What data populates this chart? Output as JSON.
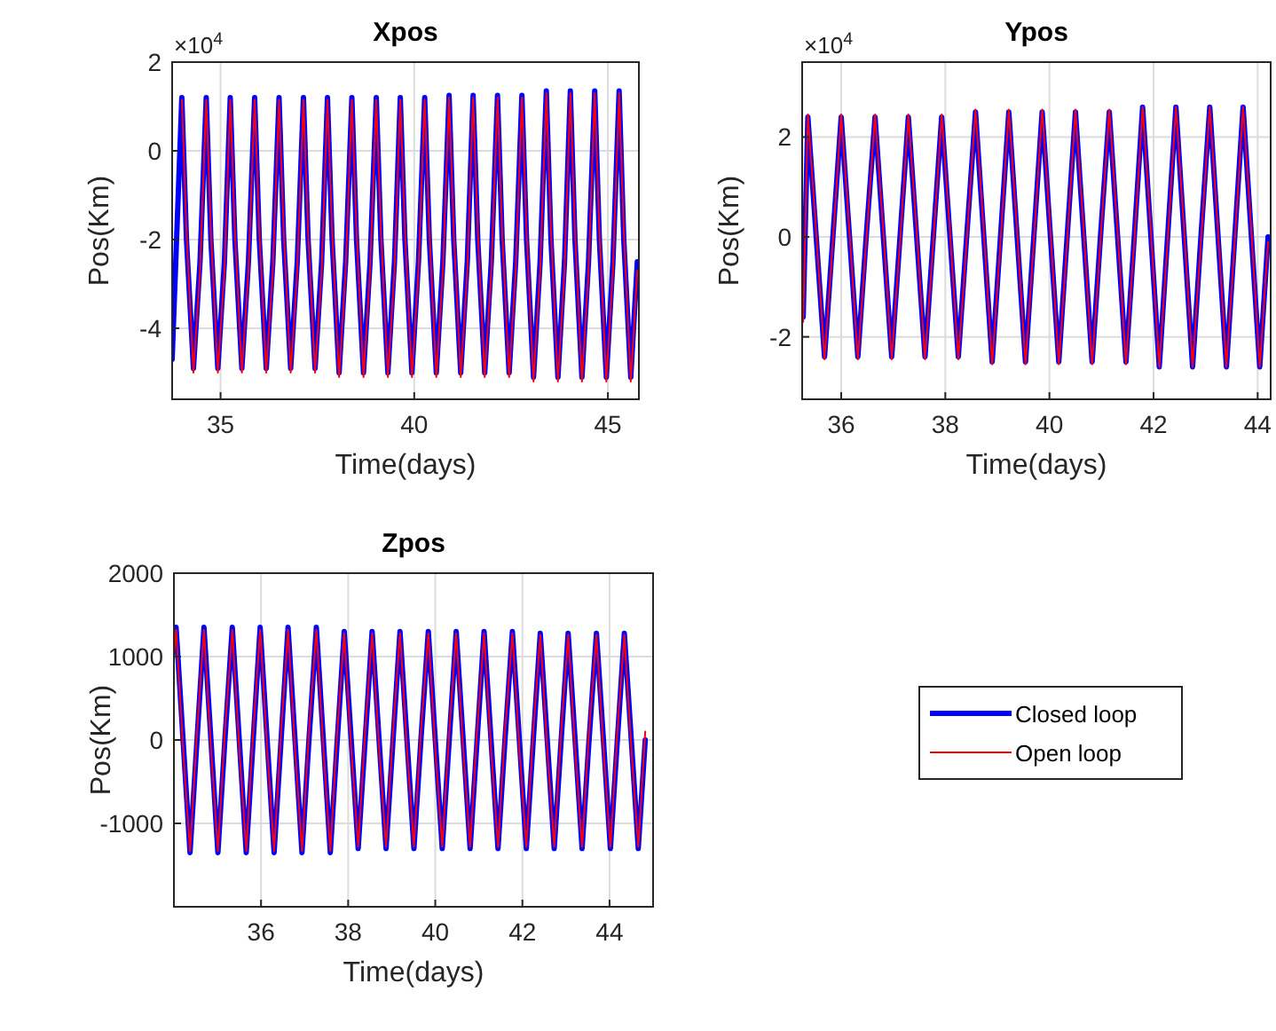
{
  "chart_data": [
    {
      "type": "line",
      "title": "Xpos",
      "xlabel": "Time(days)",
      "ylabel": "Pos(Km)",
      "annotations": [
        "×10$^{4}$"
      ],
      "xlim": [
        33.75,
        45.8
      ],
      "xticks": [
        35,
        40,
        45
      ],
      "ylim": [
        -5.6,
        2
      ],
      "yticks": [
        -4,
        -2,
        0,
        2
      ],
      "grid": true,
      "legend": false,
      "x": [
        33.75,
        34.0,
        34.12,
        34.3,
        34.47,
        34.63,
        34.75,
        34.93,
        35.1,
        35.25,
        35.37,
        35.55,
        35.72,
        35.88,
        36.0,
        36.18,
        36.35,
        36.51,
        36.63,
        36.81,
        36.98,
        37.14,
        37.26,
        37.44,
        37.61,
        37.76,
        37.88,
        38.06,
        38.23,
        38.39,
        38.51,
        38.69,
        38.86,
        39.02,
        39.14,
        39.32,
        39.49,
        39.64,
        39.76,
        39.94,
        40.11,
        40.27,
        40.39,
        40.57,
        40.74,
        40.9,
        41.02,
        41.2,
        41.37,
        41.52,
        41.64,
        41.82,
        41.99,
        42.15,
        42.27,
        42.45,
        42.62,
        42.78,
        42.9,
        43.08,
        43.25,
        43.41,
        43.53,
        43.71,
        43.88,
        44.03,
        44.15,
        44.33,
        44.5,
        44.66,
        44.78,
        44.96,
        45.13,
        45.29,
        45.41,
        45.59,
        45.76
      ],
      "series": [
        {
          "color": "#0000ff",
          "values": [
            -4.7,
            1.2,
            -2,
            -4.9,
            -2.5,
            1.2,
            -2,
            -4.9,
            -2.5,
            1.2,
            -2,
            -4.9,
            -2.5,
            1.2,
            -2,
            -4.9,
            -2.5,
            1.2,
            -2,
            -4.9,
            -2.5,
            1.2,
            -2,
            -4.9,
            -2.5,
            1.2,
            -2,
            -5,
            -2.5,
            1.2,
            -2,
            -5,
            -2.5,
            1.2,
            -2,
            -5,
            -2.5,
            1.2,
            -2,
            -5,
            -2.5,
            1.2,
            -2,
            -5,
            -2.5,
            1.25,
            -2,
            -5,
            -2.5,
            1.25,
            -2,
            -5,
            -2.5,
            1.25,
            -2,
            -5,
            -2.5,
            1.25,
            -2,
            -5.1,
            -2.5,
            1.35,
            -2,
            -5.1,
            -2.5,
            1.35,
            -2,
            -5.1,
            -2.5,
            1.35,
            -2,
            -5.1,
            -2.5,
            1.35,
            -2,
            -5.1,
            -2.5
          ]
        },
        {
          "color": "#ff0000",
          "values": [
            null,
            1.15,
            -1.8,
            -5,
            -2.7,
            1.15,
            -1.8,
            -5,
            -2.7,
            1.15,
            -1.8,
            -5,
            -2.7,
            1.15,
            -1.8,
            -5,
            -2.7,
            1.15,
            -1.8,
            -5,
            -2.7,
            1.15,
            -1.8,
            -5,
            -2.7,
            1.15,
            -1.8,
            -5.1,
            -2.7,
            1.15,
            -1.8,
            -5.1,
            -2.7,
            1.15,
            -1.8,
            -5.1,
            -2.7,
            1.15,
            -1.8,
            -5.1,
            -2.7,
            1.15,
            -1.8,
            -5.1,
            -2.7,
            1.2,
            -1.8,
            -5.1,
            -2.7,
            1.2,
            -1.8,
            -5.1,
            -2.7,
            1.2,
            -1.8,
            -5.1,
            -2.7,
            1.2,
            -1.8,
            -5.2,
            -2.7,
            1.3,
            -1.8,
            -5.2,
            -2.7,
            1.3,
            -1.8,
            -5.2,
            -2.7,
            1.3,
            -1.8,
            -5.2,
            -2.7,
            1.3,
            -1.8,
            -5.2,
            -2.7
          ]
        }
      ]
    },
    {
      "type": "line",
      "title": "Ypos",
      "xlabel": "Time(days)",
      "ylabel": "Pos(Km)",
      "annotations": [
        "×10$^{4}$"
      ],
      "xlim": [
        35.25,
        44.25
      ],
      "xticks": [
        36,
        38,
        40,
        42,
        44
      ],
      "ylim": [
        -3.25,
        3.5
      ],
      "yticks": [
        -2,
        0,
        2
      ],
      "grid": true,
      "legend": false,
      "x": [
        35.27,
        35.36,
        35.52,
        35.68,
        35.84,
        36.0,
        36.16,
        36.32,
        36.48,
        36.65,
        36.81,
        36.97,
        37.13,
        37.29,
        37.45,
        37.61,
        37.77,
        37.93,
        38.09,
        38.25,
        38.41,
        38.58,
        38.74,
        38.9,
        39.06,
        39.22,
        39.38,
        39.54,
        39.7,
        39.86,
        40.02,
        40.18,
        40.34,
        40.5,
        40.66,
        40.82,
        40.98,
        41.15,
        41.31,
        41.47,
        41.63,
        41.79,
        41.95,
        42.11,
        42.27,
        42.43,
        42.59,
        42.75,
        42.91,
        43.08,
        43.24,
        43.4,
        43.56,
        43.72,
        43.88,
        44.04,
        44.2
      ],
      "series": [
        {
          "color": "#0000ff",
          "values": [
            -1.6,
            2.4,
            0,
            -2.4,
            0,
            2.4,
            0,
            -2.4,
            0,
            2.4,
            0,
            -2.4,
            0,
            2.4,
            0,
            -2.4,
            0,
            2.4,
            0,
            -2.4,
            0,
            2.5,
            0,
            -2.5,
            0,
            2.5,
            0,
            -2.5,
            0,
            2.5,
            0,
            -2.5,
            0,
            2.5,
            0,
            -2.5,
            0,
            2.5,
            0,
            -2.5,
            0,
            2.6,
            0,
            -2.6,
            0,
            2.6,
            0,
            -2.6,
            0,
            2.6,
            0,
            -2.6,
            0,
            2.6,
            0,
            -2.6,
            0
          ]
        },
        {
          "color": "#ff0000",
          "values": [
            -1.7,
            2.45,
            0.1,
            -2.45,
            -0.1,
            2.45,
            0.1,
            -2.45,
            -0.1,
            2.45,
            0.1,
            -2.45,
            -0.1,
            2.45,
            0.1,
            -2.45,
            -0.1,
            2.45,
            0.1,
            -2.45,
            -0.1,
            2.55,
            0.1,
            -2.55,
            -0.1,
            2.55,
            0.1,
            -2.55,
            -0.1,
            2.55,
            0.1,
            -2.55,
            -0.1,
            2.55,
            0.1,
            -2.55,
            -0.1,
            2.55,
            0.1,
            -2.55,
            -0.1,
            2.6,
            0.1,
            -2.6,
            -0.1,
            2.6,
            0.1,
            -2.6,
            -0.1,
            2.6,
            0.1,
            -2.6,
            -0.1,
            2.6,
            0.1,
            -2.6,
            -0.1
          ]
        }
      ]
    },
    {
      "type": "line",
      "title": "Zpos",
      "xlabel": "Time(days)",
      "ylabel": "Pos(Km)",
      "xlim": [
        34,
        45
      ],
      "xticks": [
        36,
        38,
        40,
        42,
        44
      ],
      "ylim": [
        -2000,
        2000
      ],
      "yticks": [
        -1000,
        0,
        1000,
        2000
      ],
      "grid": true,
      "legend": "right",
      "x": [
        34.0,
        34.05,
        34.21,
        34.37,
        34.53,
        34.69,
        34.85,
        35.01,
        35.17,
        35.34,
        35.5,
        35.66,
        35.82,
        35.98,
        36.14,
        36.3,
        36.46,
        36.62,
        36.78,
        36.94,
        37.1,
        37.27,
        37.43,
        37.59,
        37.75,
        37.91,
        38.07,
        38.23,
        38.39,
        38.55,
        38.71,
        38.87,
        39.03,
        39.19,
        39.35,
        39.51,
        39.67,
        39.84,
        40.0,
        40.16,
        40.32,
        40.48,
        40.64,
        40.8,
        40.96,
        41.12,
        41.28,
        41.44,
        41.6,
        41.77,
        41.93,
        42.09,
        42.25,
        42.41,
        42.57,
        42.73,
        42.89,
        43.05,
        43.21,
        43.37,
        43.53,
        43.7,
        43.86,
        44.02,
        44.18,
        44.34,
        44.5,
        44.66,
        44.82
      ],
      "series": [
        {
          "name": "Closed loop",
          "color": "#0000ff",
          "values": [
            1050,
            1350,
            0,
            -1350,
            0,
            1350,
            0,
            -1350,
            0,
            1350,
            0,
            -1350,
            0,
            1350,
            0,
            -1350,
            0,
            1350,
            0,
            -1350,
            0,
            1350,
            0,
            -1350,
            0,
            1300,
            0,
            -1300,
            0,
            1300,
            0,
            -1300,
            0,
            1300,
            0,
            -1300,
            0,
            1300,
            0,
            -1300,
            0,
            1300,
            0,
            -1300,
            0,
            1300,
            0,
            -1300,
            0,
            1300,
            0,
            -1300,
            0,
            1280,
            0,
            -1300,
            0,
            1280,
            0,
            -1300,
            0,
            1280,
            0,
            -1300,
            0,
            1280,
            0,
            -1300,
            0
          ]
        },
        {
          "name": "Open loop",
          "color": "#ff0000",
          "values": [
            1000,
            1320,
            -100,
            -1330,
            100,
            1320,
            -100,
            -1330,
            100,
            1320,
            -100,
            -1330,
            100,
            1320,
            -100,
            -1330,
            100,
            1320,
            -100,
            -1330,
            100,
            1320,
            -100,
            -1330,
            100,
            1280,
            -100,
            -1280,
            100,
            1280,
            -100,
            -1280,
            100,
            1280,
            -100,
            -1280,
            100,
            1280,
            -100,
            -1280,
            100,
            1280,
            -100,
            -1280,
            100,
            1280,
            -100,
            -1280,
            100,
            1280,
            -100,
            -1280,
            100,
            1260,
            -100,
            -1280,
            100,
            1260,
            -100,
            -1280,
            100,
            1260,
            -100,
            -1280,
            100,
            1260,
            -100,
            -1280,
            100
          ]
        }
      ]
    }
  ]
}
